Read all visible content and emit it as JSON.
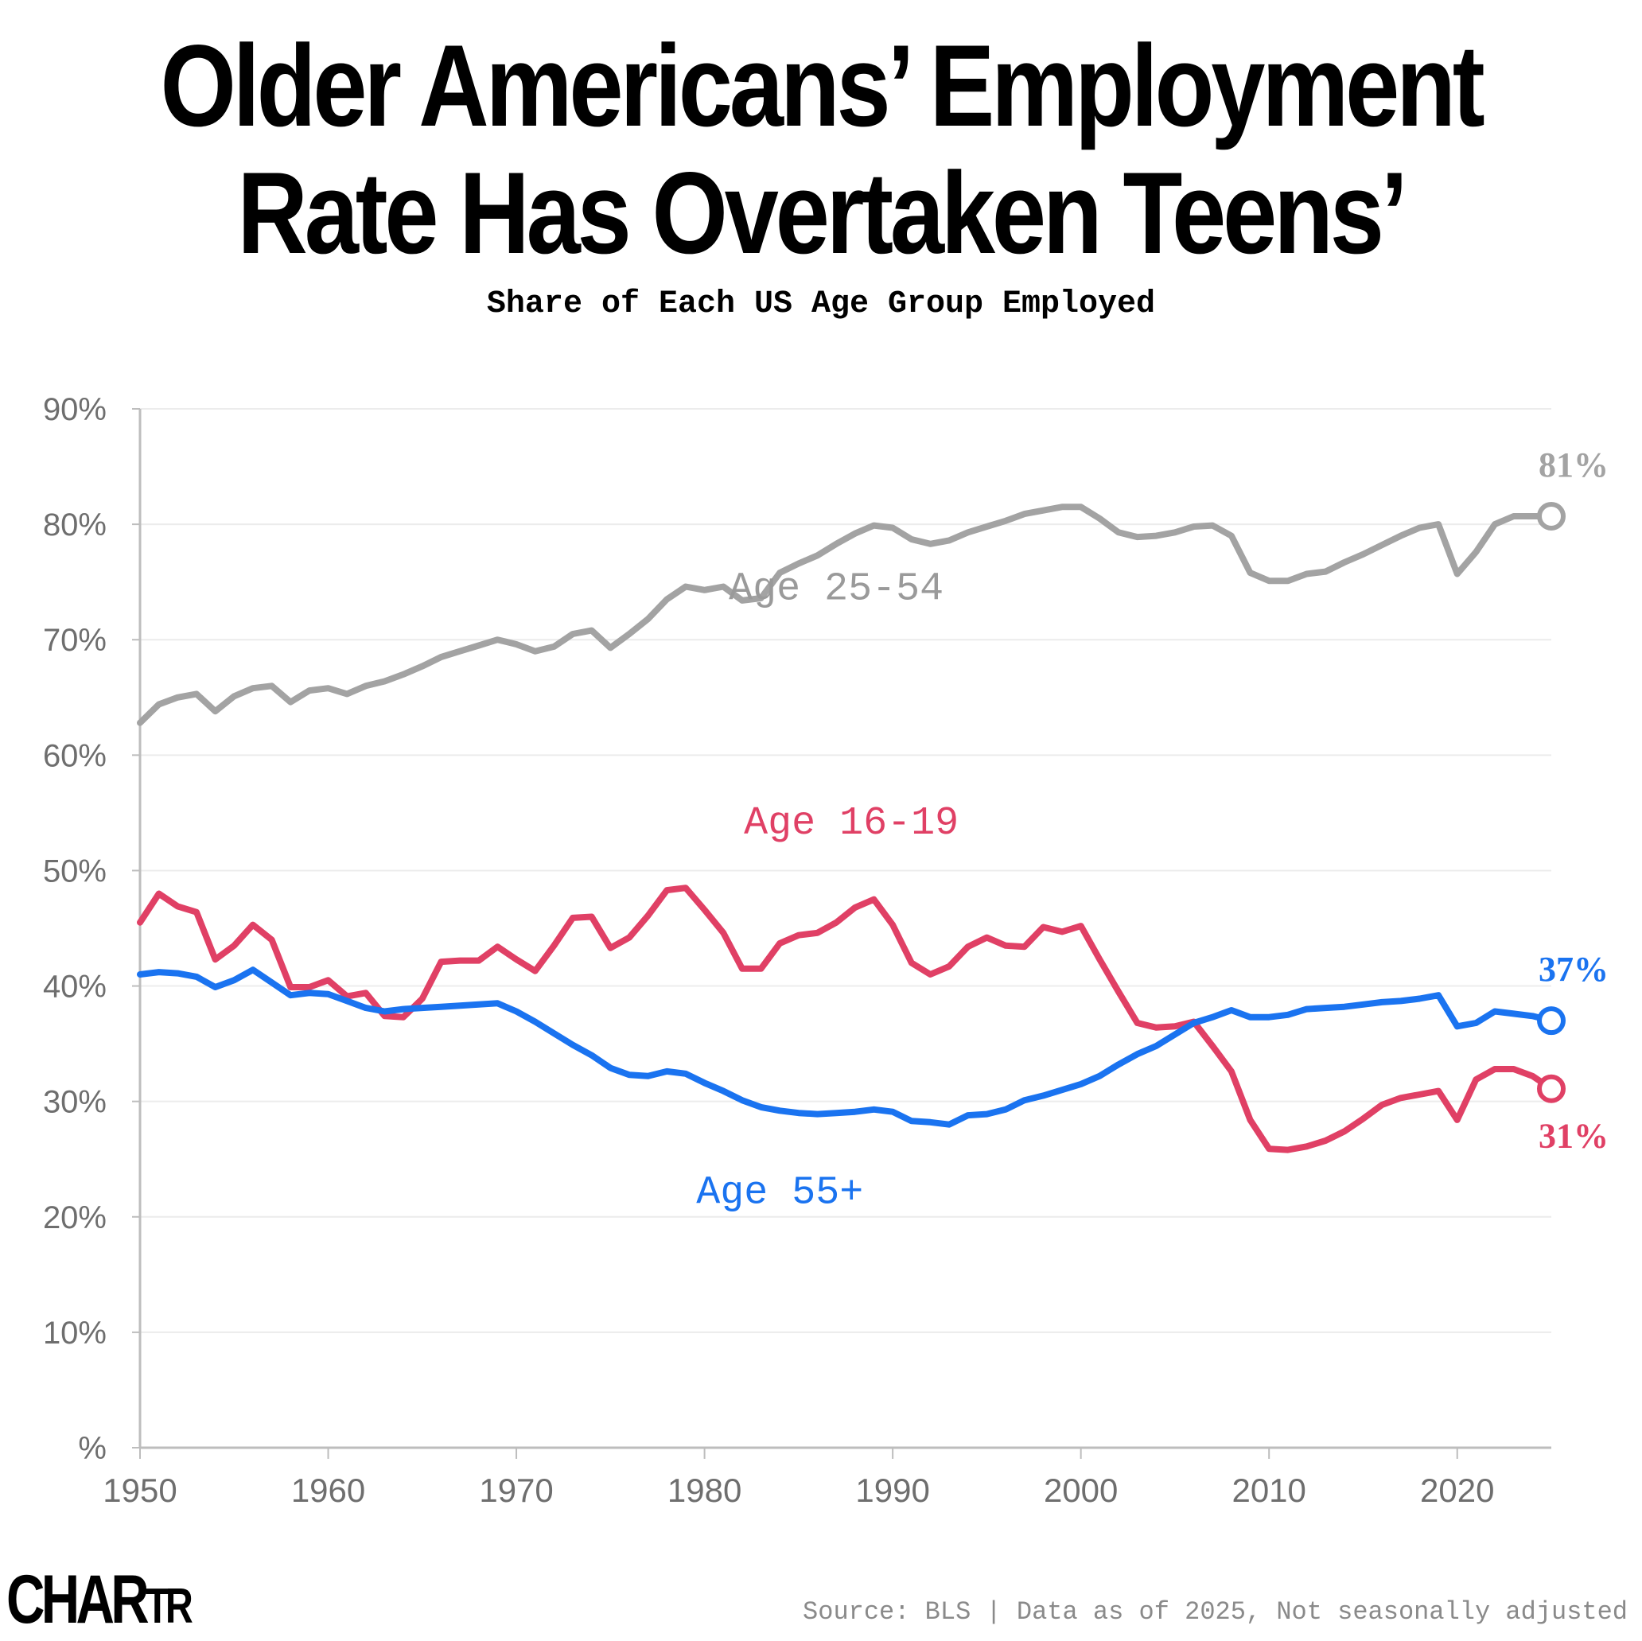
{
  "header": {
    "title_line1": "Older Americans’ Employment",
    "title_line2": "Rate Has Overtaken Teens’",
    "subtitle": "Share of Each US Age Group Employed"
  },
  "footer": {
    "logo_main": "CHAR",
    "logo_tail": "TR",
    "source": "Source: BLS | Data as of 2025, Not seasonally adjusted"
  },
  "chart_data": {
    "type": "line",
    "xlim": [
      1950,
      2025
    ],
    "ylim": [
      0,
      90
    ],
    "x_ticks": [
      "1950",
      "1960",
      "1970",
      "1980",
      "1990",
      "2000",
      "2010",
      "2020"
    ],
    "y_ticks": [
      "%",
      "10%",
      "20%",
      "30%",
      "40%",
      "50%",
      "60%",
      "70%",
      "80%",
      "90%"
    ],
    "grid": true,
    "series": [
      {
        "name": "Age 25-54",
        "color": "#a3a3a3",
        "end_label": "81%",
        "x": [
          1950,
          1951,
          1952,
          1953,
          1954,
          1955,
          1956,
          1957,
          1958,
          1959,
          1960,
          1961,
          1962,
          1963,
          1964,
          1965,
          1966,
          1967,
          1968,
          1969,
          1970,
          1971,
          1972,
          1973,
          1974,
          1975,
          1976,
          1977,
          1978,
          1979,
          1980,
          1981,
          1982,
          1983,
          1984,
          1985,
          1986,
          1987,
          1988,
          1989,
          1990,
          1991,
          1992,
          1993,
          1994,
          1995,
          1996,
          1997,
          1998,
          1999,
          2000,
          2001,
          2002,
          2003,
          2004,
          2005,
          2006,
          2007,
          2008,
          2009,
          2010,
          2011,
          2012,
          2013,
          2014,
          2015,
          2016,
          2017,
          2018,
          2019,
          2020,
          2021,
          2022,
          2023,
          2024,
          2025
        ],
        "values": [
          62.8,
          64.4,
          65.0,
          65.3,
          63.8,
          65.1,
          65.8,
          66.0,
          64.6,
          65.6,
          65.8,
          65.3,
          66.0,
          66.4,
          67.0,
          67.7,
          68.5,
          69.0,
          69.5,
          70.0,
          69.6,
          69.0,
          69.4,
          70.5,
          70.8,
          69.3,
          70.5,
          71.8,
          73.5,
          74.6,
          74.3,
          74.6,
          73.4,
          73.6,
          75.8,
          76.6,
          77.3,
          78.3,
          79.2,
          79.9,
          79.7,
          78.7,
          78.3,
          78.6,
          79.3,
          79.8,
          80.3,
          80.9,
          81.2,
          81.5,
          81.5,
          80.5,
          79.3,
          78.9,
          79.0,
          79.3,
          79.8,
          79.9,
          79.0,
          75.8,
          75.1,
          75.1,
          75.7,
          75.9,
          76.7,
          77.4,
          78.2,
          79.0,
          79.7,
          80.0,
          75.7,
          77.6,
          80.0,
          80.7,
          80.7,
          80.7
        ]
      },
      {
        "name": "Age 16-19",
        "color": "#e04065",
        "end_label": "31%",
        "x": [
          1950,
          1951,
          1952,
          1953,
          1954,
          1955,
          1956,
          1957,
          1958,
          1959,
          1960,
          1961,
          1962,
          1963,
          1964,
          1965,
          1966,
          1967,
          1968,
          1969,
          1970,
          1971,
          1972,
          1973,
          1974,
          1975,
          1976,
          1977,
          1978,
          1979,
          1980,
          1981,
          1982,
          1983,
          1984,
          1985,
          1986,
          1987,
          1988,
          1989,
          1990,
          1991,
          1992,
          1993,
          1994,
          1995,
          1996,
          1997,
          1998,
          1999,
          2000,
          2001,
          2002,
          2003,
          2004,
          2005,
          2006,
          2007,
          2008,
          2009,
          2010,
          2011,
          2012,
          2013,
          2014,
          2015,
          2016,
          2017,
          2018,
          2019,
          2020,
          2021,
          2022,
          2023,
          2024,
          2025
        ],
        "values": [
          45.5,
          48.0,
          46.9,
          46.4,
          42.3,
          43.5,
          45.3,
          44.0,
          39.9,
          39.9,
          40.5,
          39.1,
          39.4,
          37.4,
          37.3,
          38.9,
          42.1,
          42.2,
          42.2,
          43.4,
          42.3,
          41.3,
          43.5,
          45.9,
          46.0,
          43.3,
          44.2,
          46.1,
          48.3,
          48.5,
          46.6,
          44.6,
          41.5,
          41.5,
          43.7,
          44.4,
          44.6,
          45.5,
          46.8,
          47.5,
          45.3,
          42.0,
          41.0,
          41.7,
          43.4,
          44.2,
          43.5,
          43.4,
          45.1,
          44.7,
          45.2,
          42.3,
          39.5,
          36.8,
          36.4,
          36.5,
          36.9,
          34.8,
          32.6,
          28.4,
          25.9,
          25.8,
          26.1,
          26.6,
          27.4,
          28.5,
          29.7,
          30.3,
          30.6,
          30.9,
          28.4,
          31.9,
          32.8,
          32.8,
          32.2,
          31.1
        ]
      },
      {
        "name": "Age 55+",
        "color": "#1a73f0",
        "end_label": "37%",
        "x": [
          1950,
          1951,
          1952,
          1953,
          1954,
          1955,
          1956,
          1957,
          1958,
          1959,
          1960,
          1961,
          1962,
          1963,
          1964,
          1965,
          1966,
          1967,
          1968,
          1969,
          1970,
          1971,
          1972,
          1973,
          1974,
          1975,
          1976,
          1977,
          1978,
          1979,
          1980,
          1981,
          1982,
          1983,
          1984,
          1985,
          1986,
          1987,
          1988,
          1989,
          1990,
          1991,
          1992,
          1993,
          1994,
          1995,
          1996,
          1997,
          1998,
          1999,
          2000,
          2001,
          2002,
          2003,
          2004,
          2005,
          2006,
          2007,
          2008,
          2009,
          2010,
          2011,
          2012,
          2013,
          2014,
          2015,
          2016,
          2017,
          2018,
          2019,
          2020,
          2021,
          2022,
          2023,
          2024,
          2025
        ],
        "values": [
          41.0,
          41.2,
          41.1,
          40.8,
          39.9,
          40.5,
          41.4,
          40.3,
          39.2,
          39.4,
          39.3,
          38.7,
          38.1,
          37.8,
          38.0,
          38.1,
          38.2,
          38.3,
          38.4,
          38.5,
          37.8,
          36.9,
          35.9,
          34.9,
          34.0,
          32.9,
          32.3,
          32.2,
          32.6,
          32.4,
          31.6,
          30.9,
          30.1,
          29.5,
          29.2,
          29.0,
          28.9,
          29.0,
          29.1,
          29.3,
          29.1,
          28.3,
          28.2,
          28.0,
          28.8,
          28.9,
          29.3,
          30.1,
          30.5,
          31.0,
          31.5,
          32.2,
          33.2,
          34.1,
          34.8,
          35.8,
          36.8,
          37.3,
          37.9,
          37.3,
          37.3,
          37.5,
          38.0,
          38.1,
          38.2,
          38.4,
          38.6,
          38.7,
          38.9,
          39.2,
          36.5,
          36.8,
          37.8,
          37.6,
          37.4,
          37.0
        ]
      }
    ],
    "annotations": [
      {
        "text": "Age 25-54",
        "x": 1987,
        "y": 73.5,
        "color": "#9a9a9a"
      },
      {
        "text": "Age 16-19",
        "x": 1987.8,
        "y": 53.2,
        "color": "#e04065"
      },
      {
        "text": "Age 55+",
        "x": 1984,
        "y": 21.2,
        "color": "#1a73f0"
      }
    ]
  }
}
